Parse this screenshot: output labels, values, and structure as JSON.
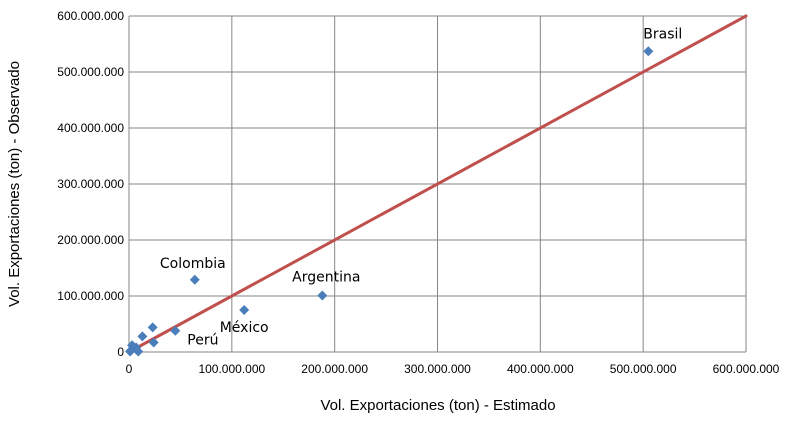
{
  "chart_data": {
    "type": "scatter",
    "xlabel": "Vol. Exportaciones (ton) - Estimado",
    "ylabel": "Vol. Exportaciones (ton) - Observado",
    "xlim": [
      0,
      600000000
    ],
    "ylim": [
      0,
      600000000
    ],
    "x_ticks": [
      0,
      100000000,
      200000000,
      300000000,
      400000000,
      500000000,
      600000000
    ],
    "y_ticks": [
      0,
      100000000,
      200000000,
      300000000,
      400000000,
      500000000,
      600000000
    ],
    "x_tick_labels": [
      "0",
      "100.000.000",
      "200.000.000",
      "300.000.000",
      "400.000.000",
      "500.000.000",
      "600.000.000"
    ],
    "y_tick_labels": [
      "0",
      "100.000.000",
      "200.000.000",
      "300.000.000",
      "400.000.000",
      "500.000.000",
      "600.000.000"
    ],
    "grid": true,
    "marker_color": "#4A7EBB",
    "reference_line": {
      "from": [
        0,
        0
      ],
      "to": [
        600000000,
        600000000
      ],
      "color": "#C0504D"
    },
    "points": [
      {
        "x": 505000000,
        "y": 537000000,
        "label": "Brasil"
      },
      {
        "x": 188000000,
        "y": 101000000,
        "label": "Argentina"
      },
      {
        "x": 64000000,
        "y": 129000000,
        "label": "Colombia"
      },
      {
        "x": 112000000,
        "y": 75000000,
        "label": "México"
      },
      {
        "x": 45000000,
        "y": 38000000,
        "label": "Perú"
      },
      {
        "x": 23000000,
        "y": 44000000,
        "label": ""
      },
      {
        "x": 13000000,
        "y": 28000000,
        "label": ""
      },
      {
        "x": 24000000,
        "y": 17000000,
        "label": ""
      },
      {
        "x": 3000000,
        "y": 12000000,
        "label": ""
      },
      {
        "x": 7000000,
        "y": 8000000,
        "label": ""
      },
      {
        "x": 2000000,
        "y": 3000000,
        "label": ""
      },
      {
        "x": 9000000,
        "y": 1000000,
        "label": ""
      },
      {
        "x": 1000000,
        "y": 1000000,
        "label": ""
      }
    ]
  }
}
